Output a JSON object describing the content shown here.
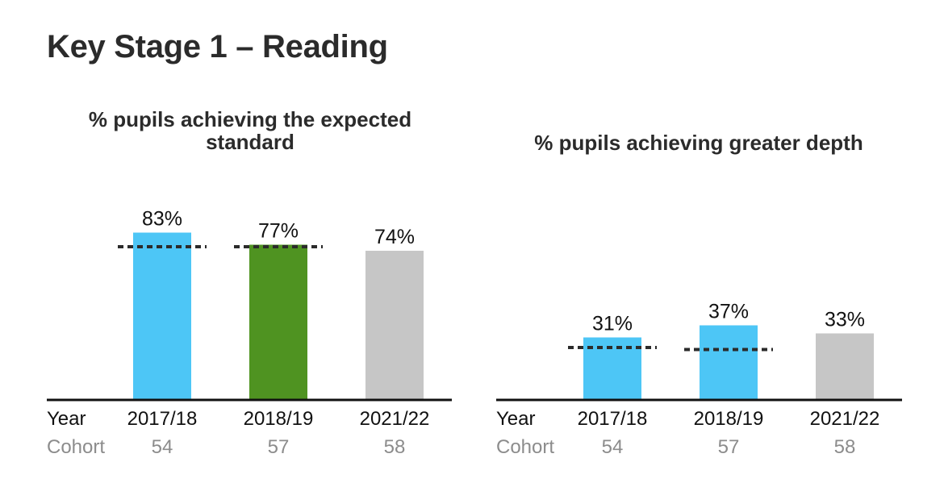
{
  "page": {
    "title": "Key Stage 1 – Reading"
  },
  "row_labels": {
    "year": "Year",
    "cohort": "Cohort"
  },
  "chart_data": [
    {
      "type": "bar",
      "title": "% pupils achieving the expected standard",
      "categories": [
        "2017/18",
        "2018/19",
        "2021/22"
      ],
      "values": [
        83,
        77,
        74
      ],
      "value_labels": [
        "83%",
        "77%",
        "74%"
      ],
      "bar_colors": [
        "#4dc6f6",
        "#4f9321",
        "#c6c6c6"
      ],
      "comparison_lines": [
        76,
        76,
        null
      ],
      "cohort": [
        "54",
        "57",
        "58"
      ],
      "ylim": [
        0,
        100
      ],
      "grid": false
    },
    {
      "type": "bar",
      "title": "% pupils achieving greater depth",
      "categories": [
        "2017/18",
        "2018/19",
        "2021/22"
      ],
      "values": [
        31,
        37,
        33
      ],
      "value_labels": [
        "31%",
        "37%",
        "33%"
      ],
      "bar_colors": [
        "#4dc6f6",
        "#4dc6f6",
        "#c6c6c6"
      ],
      "comparison_lines": [
        26,
        25,
        null
      ],
      "cohort": [
        "54",
        "57",
        "58"
      ],
      "ylim": [
        0,
        100
      ],
      "grid": false
    }
  ],
  "colors": {
    "baseline": "#111111",
    "dotted_line": "#2b2b2b",
    "cohort_text": "#8c8c8c",
    "title_text": "#2b2b2b"
  }
}
